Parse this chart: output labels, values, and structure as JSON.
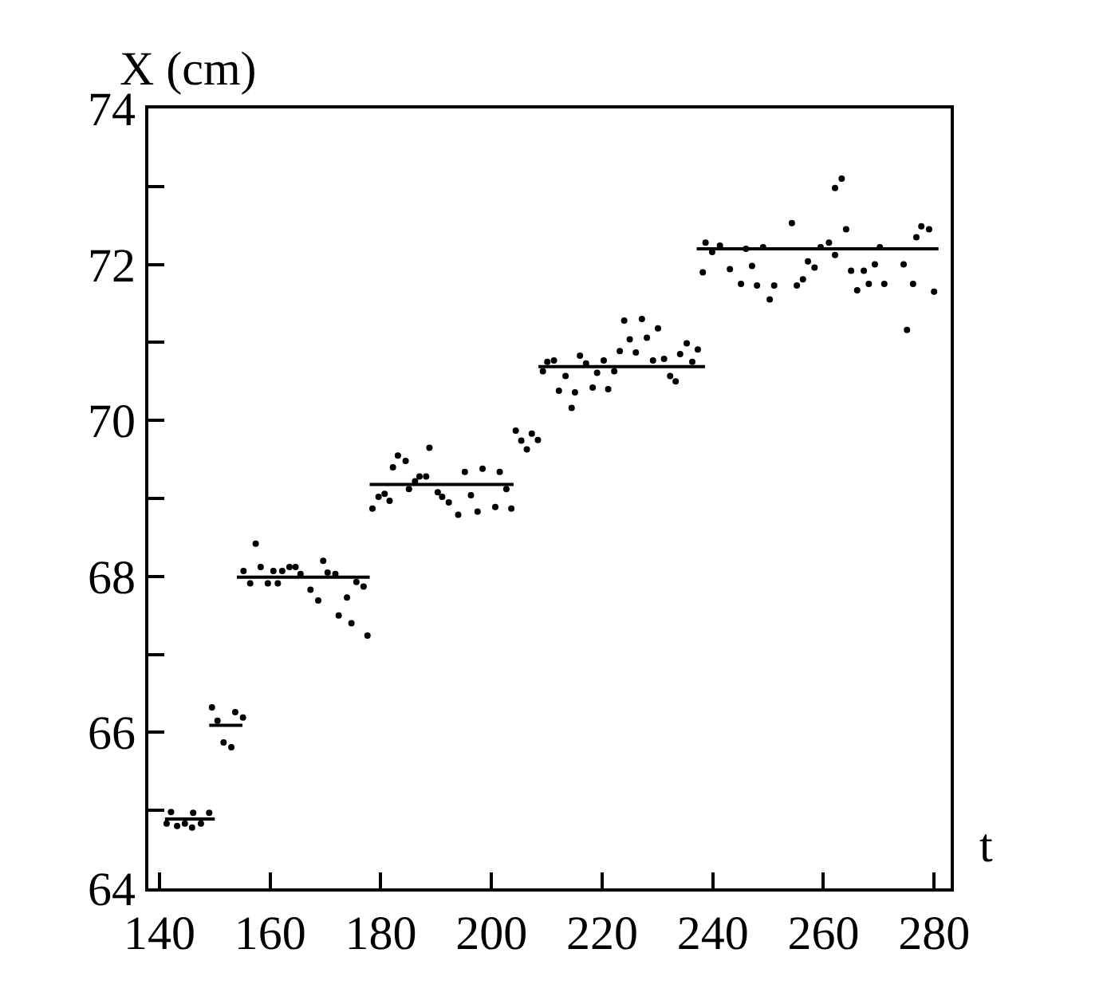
{
  "chart_data": {
    "type": "scatter",
    "xlabel": "t",
    "ylabel": "X (cm)",
    "xlim": [
      138,
      283
    ],
    "ylim": [
      64,
      74
    ],
    "xticks": [
      140,
      160,
      180,
      200,
      220,
      240,
      260,
      280
    ],
    "yticks": [
      64,
      {
        "value": 65,
        "label": null
      },
      66,
      {
        "value": 67,
        "label": null
      },
      68,
      {
        "value": 69,
        "label": null
      },
      70,
      {
        "value": 71,
        "label": null
      },
      72,
      {
        "value": 73,
        "label": null
      },
      74
    ],
    "grid": false,
    "marker": "circle",
    "series": [
      {
        "color": "#000000",
        "x": [
          141.3,
          142.1,
          143.2,
          144.6,
          145.9,
          146.1,
          147.5,
          149.0,
          149.5,
          150.5,
          151.6,
          153.0,
          153.7,
          155.1,
          155.2,
          156.4,
          157.4,
          158.3,
          159.6,
          160.6,
          161.4,
          162.2,
          163.5,
          164.6,
          165.5,
          167.3,
          168.7,
          169.6,
          170.4,
          171.8,
          172.4,
          173.9,
          174.7,
          175.6,
          176.9,
          177.6,
          178.5,
          179.6,
          180.7,
          181.6,
          182.2,
          183.1,
          184.5,
          185.1,
          186.2,
          187.0,
          188.2,
          188.8,
          190.3,
          191.1,
          192.3,
          194.0,
          195.2,
          196.3,
          197.5,
          198.4,
          200.7,
          201.5,
          202.7,
          203.6,
          204.4,
          205.4,
          206.4,
          207.3,
          208.4,
          209.3,
          210.1,
          211.3,
          212.2,
          213.4,
          214.5,
          215.1,
          216.0,
          217.1,
          218.3,
          219.1,
          220.3,
          221.1,
          222.2,
          223.2,
          224.0,
          225.0,
          226.1,
          227.2,
          228.1,
          229.2,
          230.1,
          231.2,
          232.3,
          233.3,
          234.1,
          235.3,
          236.3,
          237.3,
          238.2,
          238.7,
          239.9,
          241.3,
          243.1,
          245.1,
          246.0,
          247.1,
          248.0,
          249.1,
          250.3,
          251.1,
          254.3,
          255.2,
          256.3,
          257.2,
          258.4,
          259.5,
          261.0,
          262.1,
          262.1,
          263.3,
          264.1,
          265.0,
          266.1,
          267.3,
          268.2,
          269.3,
          270.2,
          271.0,
          274.5,
          275.1,
          276.2,
          276.8,
          277.7,
          279.1,
          280.0
        ],
        "values": [
          64.83,
          64.98,
          64.8,
          64.83,
          64.78,
          64.97,
          64.83,
          64.97,
          66.32,
          66.15,
          65.87,
          65.81,
          66.26,
          66.19,
          68.07,
          67.91,
          68.42,
          68.12,
          67.91,
          68.07,
          67.91,
          68.07,
          68.12,
          68.12,
          68.03,
          67.83,
          67.69,
          68.2,
          68.05,
          68.03,
          67.5,
          67.73,
          67.4,
          67.93,
          67.87,
          67.24,
          68.87,
          69.02,
          69.06,
          68.97,
          69.4,
          69.55,
          69.48,
          69.12,
          69.22,
          69.28,
          69.28,
          69.65,
          69.08,
          69.02,
          68.95,
          68.79,
          69.34,
          69.04,
          68.83,
          69.38,
          68.89,
          69.34,
          69.12,
          68.87,
          69.87,
          69.74,
          69.63,
          69.83,
          69.75,
          70.63,
          70.75,
          70.77,
          70.38,
          70.57,
          70.16,
          70.36,
          70.83,
          70.73,
          70.42,
          70.61,
          70.77,
          70.4,
          70.63,
          70.89,
          71.28,
          71.04,
          70.87,
          71.3,
          71.06,
          70.77,
          71.18,
          70.79,
          70.57,
          70.5,
          70.85,
          70.99,
          70.75,
          70.91,
          71.9,
          72.28,
          72.16,
          72.24,
          71.94,
          71.75,
          72.2,
          71.98,
          71.73,
          72.22,
          71.55,
          71.73,
          72.53,
          71.73,
          71.81,
          72.04,
          71.96,
          72.22,
          72.28,
          72.12,
          72.98,
          73.1,
          72.45,
          71.92,
          71.67,
          71.92,
          71.75,
          72.0,
          72.22,
          71.75,
          72.0,
          71.16,
          71.75,
          72.35,
          72.49,
          72.45,
          71.65
        ]
      },
      {
        "type": "line",
        "marker": "none",
        "color": "#000000",
        "x": [
          141,
          150
        ],
        "values": [
          64.89,
          64.89
        ]
      },
      {
        "type": "line",
        "marker": "none",
        "color": "#000000",
        "x": [
          149,
          155
        ],
        "values": [
          66.09,
          66.09
        ]
      },
      {
        "type": "line",
        "marker": "none",
        "color": "#000000",
        "x": [
          154,
          178
        ],
        "values": [
          67.99,
          67.99
        ]
      },
      {
        "type": "line",
        "marker": "none",
        "color": "#000000",
        "x": [
          178,
          204
        ],
        "values": [
          69.18,
          69.18
        ]
      },
      {
        "type": "line",
        "marker": "none",
        "color": "#000000",
        "x": [
          208.5,
          238.6
        ],
        "values": [
          70.69,
          70.69
        ]
      },
      {
        "type": "line",
        "marker": "none",
        "color": "#000000",
        "x": [
          237.1,
          280.8
        ],
        "values": [
          72.2,
          72.2
        ]
      }
    ]
  }
}
